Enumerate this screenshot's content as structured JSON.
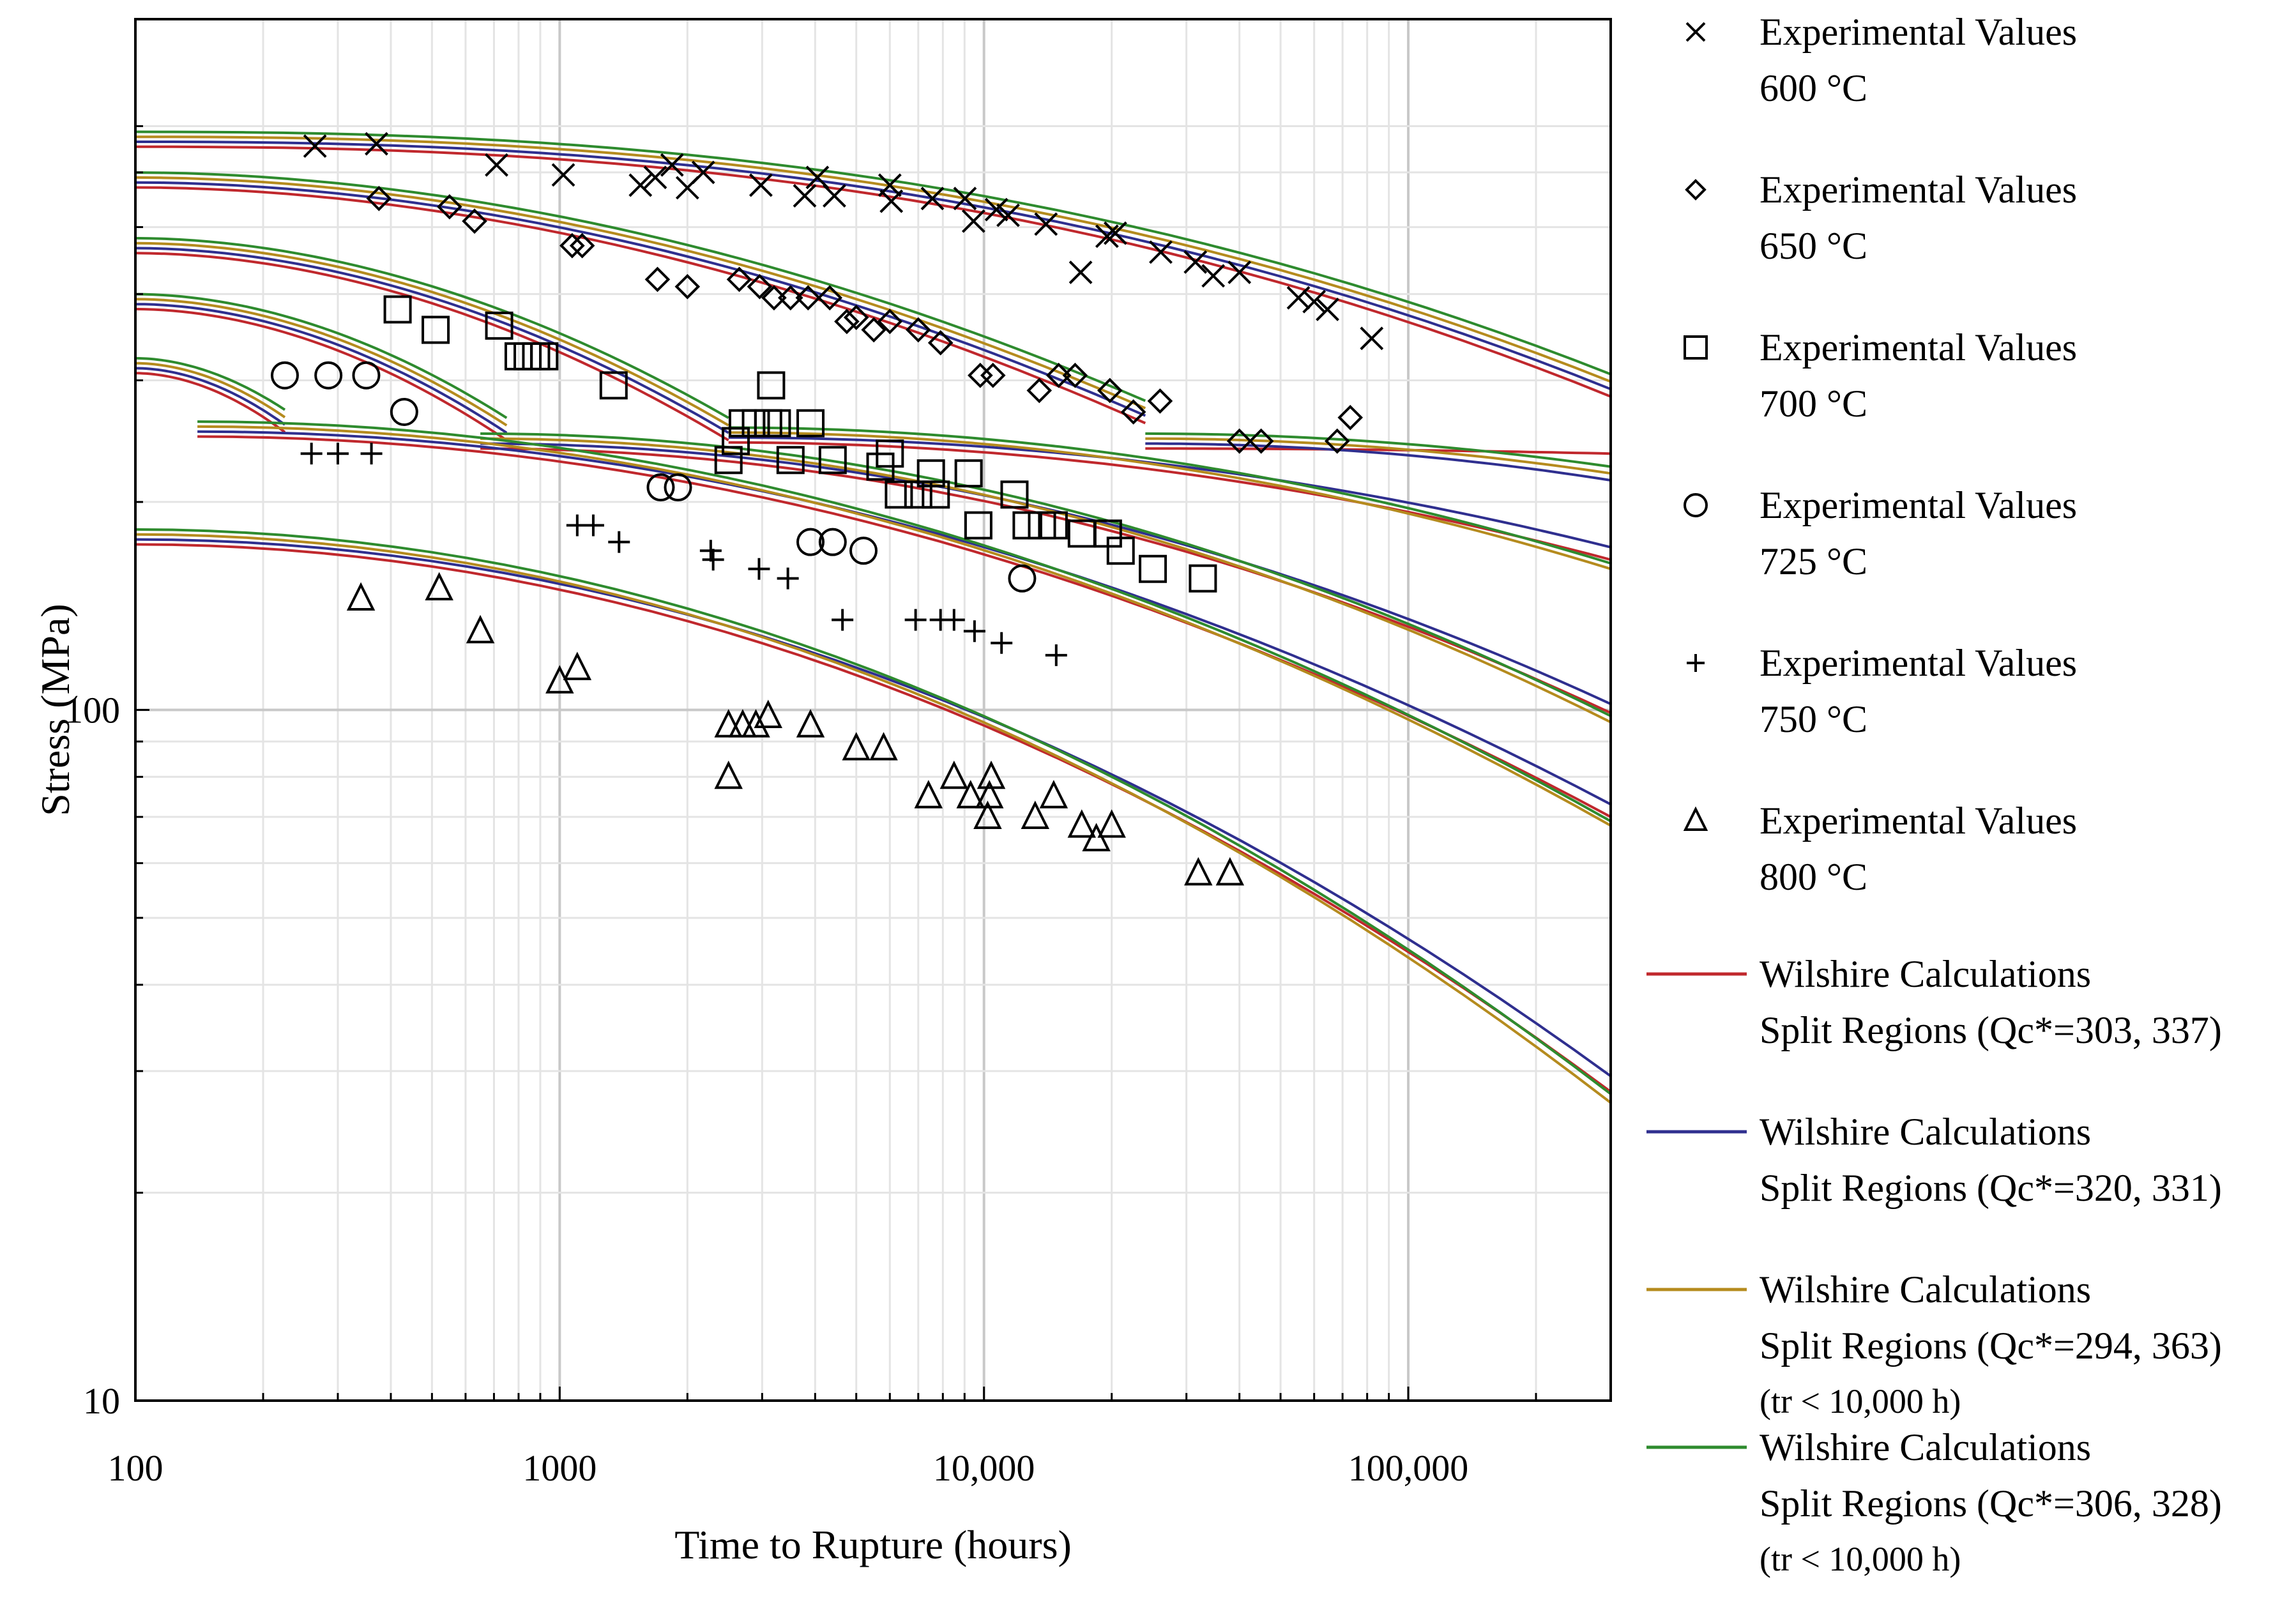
{
  "chart_data": {
    "type": "line",
    "xlabel": "Time to Rupture (hours)",
    "ylabel": "Stress (MPa)",
    "x_scale": "log",
    "y_scale": "log",
    "xlim": [
      100,
      300000
    ],
    "ylim": [
      10,
      1000
    ],
    "x_ticks": [
      {
        "value": 100,
        "label": "100"
      },
      {
        "value": 1000,
        "label": "1000"
      },
      {
        "value": 10000,
        "label": "10,000"
      },
      {
        "value": 100000,
        "label": "100,000"
      }
    ],
    "y_ticks": [
      {
        "value": 10,
        "label": "10"
      },
      {
        "value": 100,
        "label": "100"
      }
    ],
    "grid": true,
    "legend_position": "right",
    "experimental": [
      {
        "name_line1": "Experimental Values",
        "name_line2": "600 °C",
        "marker": "x",
        "points": [
          [
            265,
            655
          ],
          [
            370,
            660
          ],
          [
            710,
            615
          ],
          [
            1020,
            595
          ],
          [
            1550,
            575
          ],
          [
            1680,
            590
          ],
          [
            1840,
            615
          ],
          [
            2000,
            570
          ],
          [
            2180,
            600
          ],
          [
            2980,
            575
          ],
          [
            3780,
            555
          ],
          [
            4050,
            590
          ],
          [
            4440,
            555
          ],
          [
            6000,
            575
          ],
          [
            6050,
            545
          ],
          [
            7560,
            550
          ],
          [
            9020,
            550
          ],
          [
            9450,
            510
          ],
          [
            10700,
            530
          ],
          [
            11400,
            520
          ],
          [
            14000,
            505
          ],
          [
            16900,
            430
          ],
          [
            19500,
            485
          ],
          [
            20400,
            490
          ],
          [
            26100,
            460
          ],
          [
            31500,
            445
          ],
          [
            34700,
            425
          ],
          [
            40000,
            430
          ],
          [
            55100,
            395
          ],
          [
            60000,
            390
          ],
          [
            64500,
            380
          ],
          [
            82000,
            345
          ]
        ]
      },
      {
        "name_line1": "Experimental Values",
        "name_line2": "650 °C",
        "marker": "diamond",
        "points": [
          [
            375,
            550
          ],
          [
            550,
            535
          ],
          [
            630,
            510
          ],
          [
            1070,
            470
          ],
          [
            1130,
            470
          ],
          [
            1700,
            420
          ],
          [
            2000,
            410
          ],
          [
            2650,
            420
          ],
          [
            2960,
            410
          ],
          [
            3200,
            395
          ],
          [
            3500,
            395
          ],
          [
            3850,
            395
          ],
          [
            4330,
            395
          ],
          [
            4750,
            365
          ],
          [
            5000,
            370
          ],
          [
            5500,
            355
          ],
          [
            6000,
            365
          ],
          [
            7000,
            355
          ],
          [
            7900,
            340
          ],
          [
            9800,
            305
          ],
          [
            10500,
            305
          ],
          [
            13500,
            290
          ],
          [
            15000,
            305
          ],
          [
            16400,
            305
          ],
          [
            19800,
            290
          ],
          [
            22500,
            270
          ],
          [
            26000,
            280
          ],
          [
            40000,
            245
          ],
          [
            45000,
            245
          ],
          [
            68000,
            245
          ],
          [
            73000,
            265
          ]
        ]
      },
      {
        "name_line1": "Experimental Values",
        "name_line2": "700 °C",
        "marker": "square",
        "points": [
          [
            415,
            380
          ],
          [
            510,
            355
          ],
          [
            720,
            360
          ],
          [
            800,
            325
          ],
          [
            840,
            325
          ],
          [
            880,
            325
          ],
          [
            920,
            325
          ],
          [
            1340,
            295
          ],
          [
            2500,
            230
          ],
          [
            2600,
            245
          ],
          [
            2700,
            260
          ],
          [
            2900,
            260
          ],
          [
            3100,
            260
          ],
          [
            3150,
            295
          ],
          [
            3250,
            260
          ],
          [
            3500,
            230
          ],
          [
            3900,
            260
          ],
          [
            4400,
            230
          ],
          [
            5700,
            225
          ],
          [
            6000,
            235
          ],
          [
            6300,
            205
          ],
          [
            7000,
            205
          ],
          [
            7500,
            220
          ],
          [
            7700,
            205
          ],
          [
            9200,
            220
          ],
          [
            9700,
            185
          ],
          [
            11800,
            205
          ],
          [
            12600,
            185
          ],
          [
            13700,
            185
          ],
          [
            14600,
            185
          ],
          [
            17000,
            180
          ],
          [
            19600,
            180
          ],
          [
            21000,
            170
          ],
          [
            25000,
            160
          ],
          [
            32800,
            155
          ]
        ]
      },
      {
        "name_line1": "Experimental Values",
        "name_line2": "725 °C",
        "marker": "circle",
        "points": [
          [
            225,
            305
          ],
          [
            285,
            305
          ],
          [
            350,
            305
          ],
          [
            430,
            270
          ],
          [
            1730,
            210
          ],
          [
            1900,
            210
          ],
          [
            3900,
            175
          ],
          [
            4400,
            175
          ],
          [
            5200,
            170
          ],
          [
            12300,
            155
          ]
        ]
      },
      {
        "name_line1": "Experimental Values",
        "name_line2": "750 °C",
        "marker": "plus",
        "points": [
          [
            260,
            235
          ],
          [
            300,
            235
          ],
          [
            360,
            235
          ],
          [
            1100,
            185
          ],
          [
            1200,
            185
          ],
          [
            1380,
            175
          ],
          [
            2270,
            170
          ],
          [
            2300,
            165
          ],
          [
            2950,
            160
          ],
          [
            3450,
            155
          ],
          [
            4640,
            135
          ],
          [
            6900,
            135
          ],
          [
            7900,
            135
          ],
          [
            8500,
            135
          ],
          [
            9500,
            130
          ],
          [
            11000,
            125
          ],
          [
            14800,
            120
          ]
        ]
      },
      {
        "name_line1": "Experimental Values",
        "name_line2": "800 °C",
        "marker": "triangle",
        "points": [
          [
            340,
            145
          ],
          [
            520,
            150
          ],
          [
            650,
            130
          ],
          [
            1000,
            110
          ],
          [
            1100,
            115
          ],
          [
            2500,
            95
          ],
          [
            2500,
            80
          ],
          [
            2700,
            95
          ],
          [
            2900,
            95
          ],
          [
            3100,
            98
          ],
          [
            3900,
            95
          ],
          [
            5000,
            88
          ],
          [
            5800,
            88
          ],
          [
            7400,
            75
          ],
          [
            8500,
            80
          ],
          [
            9300,
            75
          ],
          [
            10300,
            75
          ],
          [
            10400,
            80
          ],
          [
            10200,
            70
          ],
          [
            13200,
            70
          ],
          [
            14600,
            75
          ],
          [
            17000,
            68
          ],
          [
            18400,
            65
          ],
          [
            20000,
            68
          ],
          [
            32000,
            58
          ],
          [
            38000,
            58
          ]
        ]
      }
    ],
    "model_series": [
      {
        "name_line1": "Wilshire Calculations",
        "name_line2": "Split Regions (Qc*=303, 337)",
        "name_line3": "",
        "color": "#c0282d"
      },
      {
        "name_line1": "Wilshire Calculations",
        "name_line2": "Split Regions (Qc*=320, 331)",
        "name_line3": "",
        "color": "#2f2f8f"
      },
      {
        "name_line1": "Wilshire Calculations",
        "name_line2": "Split Regions (Qc*=294, 363)",
        "name_line3": "(tr < 10,000 h)",
        "color": "#b58b1e"
      },
      {
        "name_line1": "Wilshire Calculations",
        "name_line2": "Split Regions (Qc*=306, 328)",
        "name_line3": "(tr < 10,000 h)",
        "color": "#2e8b2e"
      }
    ],
    "model_curves": [
      {
        "temperature": "600 °C",
        "upper": {
          "x_start": 100,
          "y_start": 670,
          "x_end": 300000,
          "y_end": 295
        },
        "lower": null
      },
      {
        "temperature": "650 °C",
        "upper": {
          "x_start": 100,
          "y_start": 585,
          "x_end": 24000,
          "y_end": 270
        },
        "lower": {
          "x_start": 24000,
          "y_end_all": [
            235,
            215,
            220,
            225
          ],
          "x_end": 300000,
          "y_start": 245
        }
      },
      {
        "temperature": "700 °C",
        "upper": {
          "x_start": 100,
          "y_start": 470,
          "x_end": 2500,
          "y_end": 255
        },
        "lower": {
          "x_start": 2500,
          "y_start": 250,
          "x_end": 300000,
          "y_end_all": [
            165,
            172,
            160,
            163
          ]
        }
      },
      {
        "temperature": "725 °C",
        "upper": {
          "x_start": 100,
          "y_start": 390,
          "x_end": 750,
          "y_end": 255
        },
        "lower": {
          "x_start": 650,
          "y_start": 245,
          "x_end": 300000,
          "y_end_all": [
            99,
            102,
            96,
            98
          ]
        }
      },
      {
        "temperature": "750 °C",
        "upper": {
          "x_start": 100,
          "y_start": 315,
          "x_end": 225,
          "y_end": 262
        },
        "lower": {
          "x_start": 140,
          "y_start": 255,
          "x_end": 300000,
          "y_end_all": [
            70,
            73,
            68,
            69
          ]
        }
      },
      {
        "temperature": "800 °C",
        "upper": null,
        "lower": {
          "x_start": 100,
          "y_start": 178,
          "x_end": 300000,
          "y_end_all": [
            28,
            29.5,
            27,
            27.8
          ]
        }
      }
    ]
  }
}
